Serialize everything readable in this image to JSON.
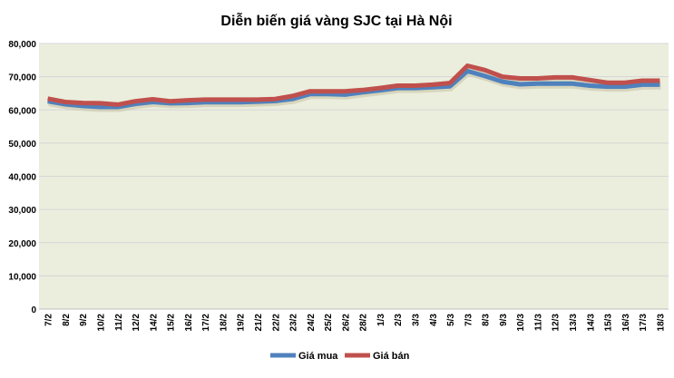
{
  "chart_data": {
    "type": "line",
    "title": "Diễn biến giá vàng SJC tại Hà Nội",
    "xlabel": "",
    "ylabel": "",
    "ylim": [
      0,
      80000
    ],
    "yticks": [
      "0",
      "10,000",
      "20,000",
      "30,000",
      "40,000",
      "50,000",
      "60,000",
      "70,000",
      "80,000"
    ],
    "grid": true,
    "legend_position": "bottom",
    "categories": [
      "7/2",
      "8/2",
      "9/2",
      "10/2",
      "11/2",
      "12/2",
      "14/2",
      "15/2",
      "16/2",
      "17/2",
      "18/2",
      "19/2",
      "21/2",
      "22/2",
      "23/2",
      "24/2",
      "25/2",
      "26/2",
      "28/2",
      "1/3",
      "2/3",
      "3/3",
      "4/3",
      "5/3",
      "7/3",
      "8/3",
      "9/3",
      "10/3",
      "11/3",
      "12/3",
      "13/3",
      "14/3",
      "15/3",
      "16/3",
      "17/3",
      "18/3"
    ],
    "series": [
      {
        "name": "Giá mua",
        "color": "#4F81BD",
        "values": [
          62600,
          61700,
          61200,
          60900,
          60900,
          61800,
          62400,
          62000,
          62100,
          62300,
          62300,
          62300,
          62500,
          62700,
          63300,
          64800,
          64800,
          64600,
          65300,
          65900,
          66600,
          66600,
          66800,
          67100,
          71700,
          70200,
          68500,
          67700,
          67900,
          67900,
          67900,
          67300,
          67000,
          67000,
          67600,
          67600
        ]
      },
      {
        "name": "Giá bán",
        "color": "#C0504D",
        "values": [
          63400,
          62400,
          62100,
          62000,
          61600,
          62600,
          63200,
          62600,
          62900,
          63100,
          63100,
          63100,
          63100,
          63300,
          64200,
          65600,
          65600,
          65600,
          66000,
          66600,
          67300,
          67300,
          67600,
          68100,
          73300,
          72000,
          70000,
          69500,
          69500,
          69800,
          69800,
          69000,
          68200,
          68200,
          68800,
          68800
        ]
      }
    ]
  }
}
